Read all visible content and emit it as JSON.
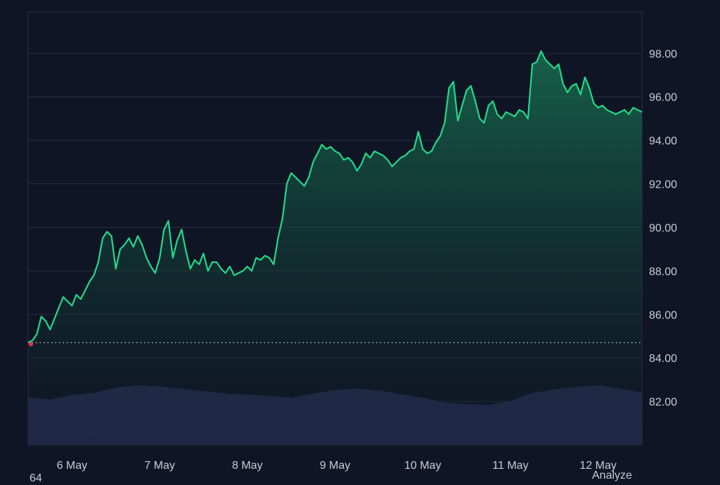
{
  "theme": {
    "background": "#0f1524",
    "grid": "#2a3244",
    "line": "#22d98a",
    "area_top": "#176a4d",
    "area_bottom": "#0f1524",
    "volume": "#262f55",
    "baseline_dot": "#d6dae3",
    "start_marker": "#e2334a",
    "axis_text": "#c9ccd6"
  },
  "chart_data": {
    "type": "area",
    "y_axis_position": "right",
    "grid": true,
    "ylim": [
      80.0,
      99.9
    ],
    "y_ticks": [
      "98.00",
      "96.00",
      "94.00",
      "92.00",
      "90.00",
      "88.00",
      "86.00",
      "84.00",
      "82.00"
    ],
    "y_tick_values": [
      98,
      96,
      94,
      92,
      90,
      88,
      86,
      84,
      82
    ],
    "x_tick_labels": [
      "6 May",
      "7 May",
      "8 May",
      "9 May",
      "10 May",
      "11 May",
      "12 May"
    ],
    "x_tick_values": [
      5.5,
      6.5,
      7.5,
      8.5,
      9.5,
      10.5,
      11.5
    ],
    "xlim": [
      5.0,
      12.0
    ],
    "baseline": 84.7,
    "price_series": {
      "x": [
        5.0,
        5.05,
        5.1,
        5.15,
        5.2,
        5.25,
        5.3,
        5.35,
        5.4,
        5.45,
        5.5,
        5.55,
        5.6,
        5.65,
        5.7,
        5.75,
        5.8,
        5.85,
        5.9,
        5.95,
        6.0,
        6.05,
        6.1,
        6.15,
        6.2,
        6.25,
        6.3,
        6.35,
        6.4,
        6.45,
        6.5,
        6.55,
        6.6,
        6.65,
        6.7,
        6.75,
        6.8,
        6.85,
        6.9,
        6.95,
        7.0,
        7.05,
        7.1,
        7.15,
        7.2,
        7.25,
        7.3,
        7.35,
        7.4,
        7.45,
        7.5,
        7.55,
        7.6,
        7.65,
        7.7,
        7.75,
        7.8,
        7.85,
        7.9,
        7.95,
        8.0,
        8.05,
        8.1,
        8.15,
        8.2,
        8.25,
        8.3,
        8.35,
        8.4,
        8.45,
        8.5,
        8.55,
        8.6,
        8.65,
        8.7,
        8.75,
        8.8,
        8.85,
        8.9,
        8.95,
        9.0,
        9.05,
        9.1,
        9.15,
        9.2,
        9.25,
        9.3,
        9.35,
        9.4,
        9.45,
        9.5,
        9.55,
        9.6,
        9.65,
        9.7,
        9.75,
        9.8,
        9.85,
        9.9,
        9.95,
        10.0,
        10.05,
        10.1,
        10.15,
        10.2,
        10.25,
        10.3,
        10.35,
        10.4,
        10.45,
        10.5,
        10.55,
        10.6,
        10.65,
        10.7,
        10.75,
        10.8,
        10.85,
        10.9,
        10.95,
        11.0,
        11.05,
        11.1,
        11.15,
        11.2,
        11.25,
        11.3,
        11.35,
        11.4,
        11.45,
        11.5,
        11.55,
        11.6,
        11.65,
        11.7,
        11.75,
        11.8,
        11.85,
        11.9,
        11.95,
        12.0
      ],
      "y": [
        84.7,
        84.8,
        85.1,
        85.9,
        85.7,
        85.3,
        85.8,
        86.3,
        86.8,
        86.6,
        86.4,
        86.9,
        86.7,
        87.1,
        87.5,
        87.8,
        88.4,
        89.5,
        89.8,
        89.6,
        88.1,
        89.0,
        89.2,
        89.5,
        89.1,
        89.6,
        89.2,
        88.6,
        88.2,
        87.9,
        88.6,
        89.9,
        90.3,
        88.6,
        89.4,
        89.9,
        88.9,
        88.1,
        88.5,
        88.3,
        88.8,
        88.0,
        88.4,
        88.4,
        88.1,
        87.9,
        88.2,
        87.8,
        87.9,
        88.0,
        88.2,
        88.0,
        88.6,
        88.5,
        88.7,
        88.6,
        88.3,
        89.5,
        90.4,
        92.0,
        92.5,
        92.3,
        92.1,
        91.9,
        92.3,
        93.0,
        93.4,
        93.8,
        93.6,
        93.7,
        93.5,
        93.4,
        93.1,
        93.2,
        93.0,
        92.6,
        92.9,
        93.4,
        93.2,
        93.5,
        93.4,
        93.3,
        93.1,
        92.8,
        93.0,
        93.2,
        93.3,
        93.5,
        93.6,
        94.4,
        93.6,
        93.4,
        93.5,
        93.9,
        94.2,
        94.8,
        96.4,
        96.7,
        94.9,
        95.6,
        96.3,
        96.5,
        95.8,
        95.0,
        94.8,
        95.6,
        95.8,
        95.2,
        95.0,
        95.3,
        95.2,
        95.1,
        95.4,
        95.3,
        95.0,
        97.5,
        97.6,
        98.1,
        97.7,
        97.5,
        97.3,
        97.5,
        96.6,
        96.2,
        96.5,
        96.6,
        96.1,
        96.9,
        96.4,
        95.7,
        95.5,
        95.6,
        95.4,
        95.3,
        95.2,
        95.3,
        95.4,
        95.2,
        95.5,
        95.4,
        95.3
      ]
    },
    "volume_series": {
      "x": [
        5.0,
        5.25,
        5.5,
        5.75,
        6.0,
        6.25,
        6.5,
        6.75,
        7.0,
        7.25,
        7.5,
        7.75,
        8.0,
        8.25,
        8.5,
        8.75,
        9.0,
        9.25,
        9.5,
        9.75,
        10.0,
        10.25,
        10.5,
        10.75,
        11.0,
        11.25,
        11.5,
        11.75,
        12.0
      ],
      "values": [
        0.8,
        0.76,
        0.84,
        0.87,
        0.96,
        1.0,
        0.98,
        0.94,
        0.9,
        0.86,
        0.84,
        0.82,
        0.79,
        0.86,
        0.92,
        0.94,
        0.91,
        0.85,
        0.79,
        0.71,
        0.68,
        0.67,
        0.74,
        0.87,
        0.93,
        0.97,
        1.0,
        0.94,
        0.88
      ]
    }
  },
  "footer": {
    "left_label": "64",
    "right_label": "Analyze"
  }
}
